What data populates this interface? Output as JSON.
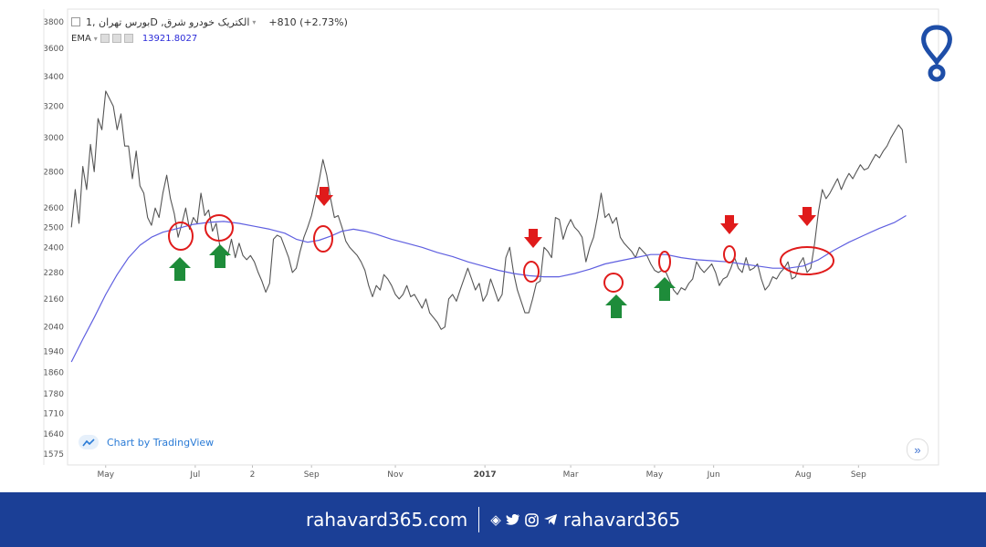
{
  "legend": {
    "symbol_title": "بورس تهران ,1D ,الکتریک خودرو شرق",
    "change": "+810 (+2.73%)",
    "ema_label": "EMA",
    "ema_value": "13921.8027"
  },
  "credit": {
    "text": "Chart by TradingView"
  },
  "footer": {
    "website": "rahavard365.com",
    "handle": "rahavard365"
  },
  "chart_data": {
    "type": "line",
    "yscale": "log",
    "ylim": [
      1540,
      3900
    ],
    "yticks": [
      1575,
      1640,
      1710,
      1780,
      1860,
      1940,
      2040,
      2160,
      2280,
      2400,
      2500,
      2600,
      2800,
      3000,
      3200,
      3400,
      3600,
      3800
    ],
    "xticks": [
      {
        "label": "May",
        "x": 18,
        "bold": false
      },
      {
        "label": "Jul",
        "x": 65,
        "bold": false
      },
      {
        "label": "2",
        "x": 95,
        "bold": false
      },
      {
        "label": "Sep",
        "x": 126,
        "bold": false
      },
      {
        "label": "Nov",
        "x": 170,
        "bold": false
      },
      {
        "label": "2017",
        "x": 217,
        "bold": true
      },
      {
        "label": "Mar",
        "x": 262,
        "bold": false
      },
      {
        "label": "May",
        "x": 306,
        "bold": false
      },
      {
        "label": "Jun",
        "x": 337,
        "bold": false
      },
      {
        "label": "Aug",
        "x": 384,
        "bold": false
      },
      {
        "label": "Sep",
        "x": 413,
        "bold": false
      }
    ],
    "xlim": [
      -2,
      455
    ],
    "series": [
      {
        "color": "#555555",
        "points": [
          [
            0,
            2500
          ],
          [
            2,
            2700
          ],
          [
            4,
            2520
          ],
          [
            6,
            2830
          ],
          [
            8,
            2700
          ],
          [
            10,
            2960
          ],
          [
            12,
            2800
          ],
          [
            14,
            3120
          ],
          [
            16,
            3050
          ],
          [
            18,
            3300
          ],
          [
            20,
            3250
          ],
          [
            22,
            3200
          ],
          [
            24,
            3050
          ],
          [
            26,
            3150
          ],
          [
            28,
            2950
          ],
          [
            30,
            2950
          ],
          [
            32,
            2760
          ],
          [
            34,
            2920
          ],
          [
            36,
            2720
          ],
          [
            38,
            2680
          ],
          [
            40,
            2550
          ],
          [
            42,
            2510
          ],
          [
            44,
            2600
          ],
          [
            46,
            2550
          ],
          [
            48,
            2680
          ],
          [
            50,
            2780
          ],
          [
            52,
            2650
          ],
          [
            54,
            2570
          ],
          [
            56,
            2450
          ],
          [
            58,
            2520
          ],
          [
            60,
            2600
          ],
          [
            62,
            2490
          ],
          [
            64,
            2550
          ],
          [
            66,
            2520
          ],
          [
            68,
            2680
          ],
          [
            70,
            2560
          ],
          [
            72,
            2590
          ],
          [
            74,
            2480
          ],
          [
            76,
            2520
          ],
          [
            78,
            2400
          ],
          [
            80,
            2370
          ],
          [
            82,
            2360
          ],
          [
            84,
            2440
          ],
          [
            86,
            2350
          ],
          [
            88,
            2420
          ],
          [
            90,
            2360
          ],
          [
            92,
            2340
          ],
          [
            94,
            2360
          ],
          [
            96,
            2330
          ],
          [
            98,
            2280
          ],
          [
            100,
            2240
          ],
          [
            102,
            2190
          ],
          [
            104,
            2230
          ],
          [
            106,
            2440
          ],
          [
            108,
            2460
          ],
          [
            110,
            2450
          ],
          [
            112,
            2400
          ],
          [
            114,
            2350
          ],
          [
            116,
            2280
          ],
          [
            118,
            2300
          ],
          [
            120,
            2380
          ],
          [
            122,
            2450
          ],
          [
            124,
            2500
          ],
          [
            126,
            2560
          ],
          [
            128,
            2650
          ],
          [
            130,
            2750
          ],
          [
            132,
            2870
          ],
          [
            134,
            2780
          ],
          [
            136,
            2650
          ],
          [
            138,
            2550
          ],
          [
            140,
            2560
          ],
          [
            142,
            2500
          ],
          [
            144,
            2430
          ],
          [
            146,
            2400
          ],
          [
            148,
            2380
          ],
          [
            150,
            2360
          ],
          [
            152,
            2330
          ],
          [
            154,
            2290
          ],
          [
            156,
            2220
          ],
          [
            158,
            2170
          ],
          [
            160,
            2220
          ],
          [
            162,
            2200
          ],
          [
            164,
            2270
          ],
          [
            166,
            2250
          ],
          [
            168,
            2220
          ],
          [
            170,
            2180
          ],
          [
            172,
            2160
          ],
          [
            174,
            2180
          ],
          [
            176,
            2220
          ],
          [
            178,
            2170
          ],
          [
            180,
            2180
          ],
          [
            182,
            2150
          ],
          [
            184,
            2120
          ],
          [
            186,
            2160
          ],
          [
            188,
            2100
          ],
          [
            190,
            2080
          ],
          [
            192,
            2060
          ],
          [
            194,
            2030
          ],
          [
            196,
            2040
          ],
          [
            198,
            2160
          ],
          [
            200,
            2180
          ],
          [
            202,
            2150
          ],
          [
            204,
            2200
          ],
          [
            206,
            2250
          ],
          [
            208,
            2300
          ],
          [
            210,
            2250
          ],
          [
            212,
            2200
          ],
          [
            214,
            2230
          ],
          [
            216,
            2150
          ],
          [
            218,
            2180
          ],
          [
            220,
            2250
          ],
          [
            222,
            2200
          ],
          [
            224,
            2150
          ],
          [
            226,
            2180
          ],
          [
            228,
            2350
          ],
          [
            230,
            2400
          ],
          [
            232,
            2280
          ],
          [
            234,
            2200
          ],
          [
            236,
            2150
          ],
          [
            238,
            2100
          ],
          [
            240,
            2100
          ],
          [
            242,
            2160
          ],
          [
            244,
            2230
          ],
          [
            246,
            2240
          ],
          [
            248,
            2400
          ],
          [
            250,
            2380
          ],
          [
            252,
            2350
          ],
          [
            254,
            2550
          ],
          [
            256,
            2540
          ],
          [
            258,
            2440
          ],
          [
            260,
            2500
          ],
          [
            262,
            2540
          ],
          [
            264,
            2500
          ],
          [
            266,
            2480
          ],
          [
            268,
            2450
          ],
          [
            270,
            2330
          ],
          [
            272,
            2400
          ],
          [
            274,
            2450
          ],
          [
            276,
            2550
          ],
          [
            278,
            2680
          ],
          [
            280,
            2550
          ],
          [
            282,
            2570
          ],
          [
            284,
            2520
          ],
          [
            286,
            2550
          ],
          [
            288,
            2450
          ],
          [
            290,
            2420
          ],
          [
            292,
            2400
          ],
          [
            294,
            2380
          ],
          [
            296,
            2350
          ],
          [
            298,
            2400
          ],
          [
            300,
            2380
          ],
          [
            302,
            2360
          ],
          [
            304,
            2320
          ],
          [
            306,
            2290
          ],
          [
            308,
            2280
          ],
          [
            310,
            2290
          ],
          [
            312,
            2280
          ],
          [
            314,
            2240
          ],
          [
            316,
            2200
          ],
          [
            318,
            2180
          ],
          [
            320,
            2210
          ],
          [
            322,
            2200
          ],
          [
            324,
            2230
          ],
          [
            326,
            2250
          ],
          [
            328,
            2330
          ],
          [
            330,
            2300
          ],
          [
            332,
            2280
          ],
          [
            334,
            2300
          ],
          [
            336,
            2320
          ],
          [
            338,
            2280
          ],
          [
            340,
            2220
          ],
          [
            342,
            2250
          ],
          [
            344,
            2260
          ],
          [
            346,
            2300
          ],
          [
            348,
            2350
          ],
          [
            350,
            2300
          ],
          [
            352,
            2280
          ],
          [
            354,
            2350
          ],
          [
            356,
            2290
          ],
          [
            358,
            2300
          ],
          [
            360,
            2320
          ],
          [
            362,
            2250
          ],
          [
            364,
            2200
          ],
          [
            366,
            2220
          ],
          [
            368,
            2260
          ],
          [
            370,
            2250
          ],
          [
            372,
            2280
          ],
          [
            374,
            2300
          ],
          [
            376,
            2330
          ],
          [
            378,
            2250
          ],
          [
            380,
            2260
          ],
          [
            382,
            2320
          ],
          [
            384,
            2350
          ],
          [
            386,
            2280
          ],
          [
            388,
            2300
          ],
          [
            390,
            2420
          ],
          [
            392,
            2580
          ],
          [
            394,
            2700
          ],
          [
            396,
            2650
          ],
          [
            398,
            2680
          ],
          [
            400,
            2720
          ],
          [
            402,
            2760
          ],
          [
            404,
            2700
          ],
          [
            406,
            2750
          ],
          [
            408,
            2790
          ],
          [
            410,
            2760
          ],
          [
            412,
            2800
          ],
          [
            414,
            2840
          ],
          [
            416,
            2810
          ],
          [
            418,
            2820
          ],
          [
            420,
            2860
          ],
          [
            422,
            2900
          ],
          [
            424,
            2880
          ],
          [
            426,
            2920
          ],
          [
            428,
            2950
          ],
          [
            430,
            3000
          ],
          [
            432,
            3040
          ],
          [
            434,
            3080
          ],
          [
            436,
            3050
          ],
          [
            438,
            2850
          ]
        ]
      },
      {
        "color": "#5f5fe0",
        "points": [
          [
            0,
            1900
          ],
          [
            6,
            1990
          ],
          [
            12,
            2080
          ],
          [
            18,
            2180
          ],
          [
            24,
            2270
          ],
          [
            30,
            2350
          ],
          [
            36,
            2410
          ],
          [
            42,
            2450
          ],
          [
            48,
            2475
          ],
          [
            56,
            2495
          ],
          [
            64,
            2515
          ],
          [
            72,
            2525
          ],
          [
            80,
            2530
          ],
          [
            88,
            2520
          ],
          [
            96,
            2505
          ],
          [
            104,
            2490
          ],
          [
            112,
            2470
          ],
          [
            118,
            2440
          ],
          [
            124,
            2425
          ],
          [
            130,
            2435
          ],
          [
            136,
            2455
          ],
          [
            142,
            2480
          ],
          [
            148,
            2490
          ],
          [
            154,
            2480
          ],
          [
            160,
            2465
          ],
          [
            168,
            2440
          ],
          [
            176,
            2420
          ],
          [
            184,
            2400
          ],
          [
            192,
            2375
          ],
          [
            200,
            2355
          ],
          [
            208,
            2330
          ],
          [
            216,
            2310
          ],
          [
            224,
            2290
          ],
          [
            232,
            2275
          ],
          [
            240,
            2265
          ],
          [
            248,
            2260
          ],
          [
            256,
            2260
          ],
          [
            264,
            2275
          ],
          [
            272,
            2295
          ],
          [
            280,
            2320
          ],
          [
            288,
            2335
          ],
          [
            296,
            2350
          ],
          [
            304,
            2365
          ],
          [
            312,
            2365
          ],
          [
            320,
            2350
          ],
          [
            328,
            2340
          ],
          [
            336,
            2335
          ],
          [
            344,
            2330
          ],
          [
            352,
            2320
          ],
          [
            360,
            2310
          ],
          [
            368,
            2300
          ],
          [
            376,
            2300
          ],
          [
            384,
            2310
          ],
          [
            392,
            2340
          ],
          [
            400,
            2385
          ],
          [
            408,
            2425
          ],
          [
            416,
            2460
          ],
          [
            424,
            2495
          ],
          [
            432,
            2525
          ],
          [
            438,
            2560
          ]
        ]
      }
    ]
  },
  "annotations": {
    "circles": [
      [
        198,
        259,
        13,
        15
      ],
      [
        240,
        250,
        15,
        14
      ],
      [
        354,
        262,
        10,
        14
      ],
      [
        582,
        298,
        8,
        11
      ],
      [
        672,
        310,
        10,
        10
      ],
      [
        728,
        287,
        6,
        11
      ],
      [
        799,
        279,
        6,
        9
      ],
      [
        884,
        286,
        29,
        15
      ]
    ],
    "green_arrows": [
      [
        197,
        282
      ],
      [
        241,
        268
      ],
      [
        675,
        323
      ],
      [
        728,
        304
      ]
    ],
    "red_arrows": [
      [
        355,
        218
      ],
      [
        584,
        264
      ],
      [
        799,
        249
      ],
      [
        884,
        240
      ]
    ]
  }
}
